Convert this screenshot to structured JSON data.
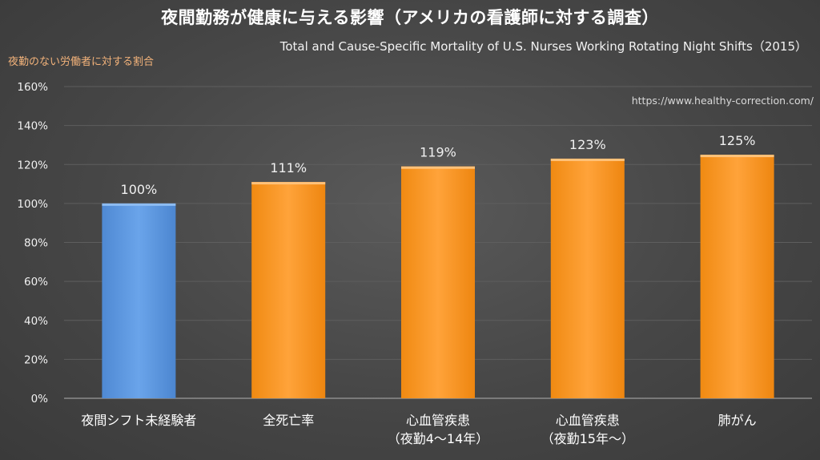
{
  "chart_data": {
    "type": "bar",
    "title": "夜間勤務が健康に与える影響（アメリカの看護師に対する調査）",
    "subtitle": "Total and Cause-Specific Mortality of U.S. Nurses Working Rotating Night Shifts（2015）",
    "ylabel": "夜勤のない労働者に対する割合",
    "source": "https://www.healthy-correction.com/",
    "categories": [
      [
        "夜間シフト未経験者"
      ],
      [
        "全死亡率"
      ],
      [
        "心血管疾患",
        "（夜勤4〜14年）"
      ],
      [
        "心血管疾患",
        "（夜勤15年〜）"
      ],
      [
        "肺がん"
      ]
    ],
    "values": [
      100,
      111,
      119,
      123,
      125
    ],
    "data_labels": [
      "100%",
      "111%",
      "119%",
      "123%",
      "125%"
    ],
    "ylim": [
      0,
      160
    ],
    "yticks": [
      0,
      20,
      40,
      60,
      80,
      100,
      120,
      140,
      160
    ],
    "ytick_labels": [
      "0%",
      "20%",
      "40%",
      "60%",
      "80%",
      "100%",
      "120%",
      "140%",
      "160%"
    ],
    "grid": true,
    "colors": {
      "baseline_bar": "#5b96dc",
      "other_bars": "#f7941d",
      "ylabel": "#f2b27a",
      "background": "#484848"
    }
  }
}
